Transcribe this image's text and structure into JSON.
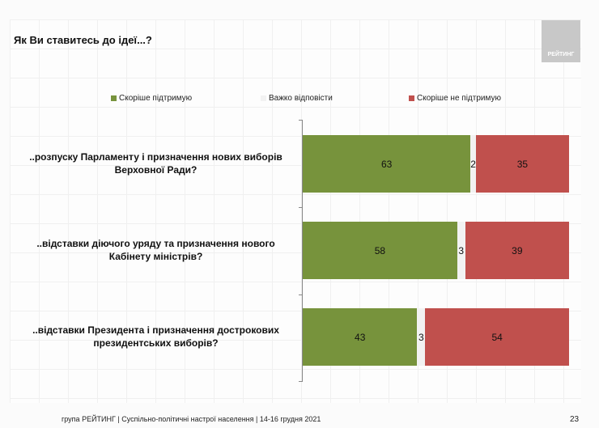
{
  "title": "Як Ви ставитесь до ідеї...?",
  "logo_text": "РЕЙТИНГ",
  "footer": "група РЕЙТИНГ | Суспільно-політичні настрої населення |  14-16 грудня 2021",
  "page_number": "23",
  "chart_data": {
    "type": "bar",
    "orientation": "horizontal",
    "stacked": true,
    "categories": [
      "..розпуску Парламенту і призначення нових виборів Верховної Ради?",
      "..відставки діючого уряду та призначення нового Кабінету міністрів?",
      "..відставки Президента і призначення дострокових президентських виборів?"
    ],
    "series": [
      {
        "name": "Скоріше підтримую",
        "color": "#77933c",
        "values": [
          63,
          58,
          43
        ]
      },
      {
        "name": "Важко відповісти",
        "color": "#f2f2f2",
        "values": [
          2,
          3,
          3
        ]
      },
      {
        "name": "Скоріше не підтримую",
        "color": "#c0504d",
        "values": [
          35,
          39,
          54
        ]
      }
    ],
    "xlim": [
      0,
      100
    ],
    "legend": "top",
    "grid": false
  }
}
